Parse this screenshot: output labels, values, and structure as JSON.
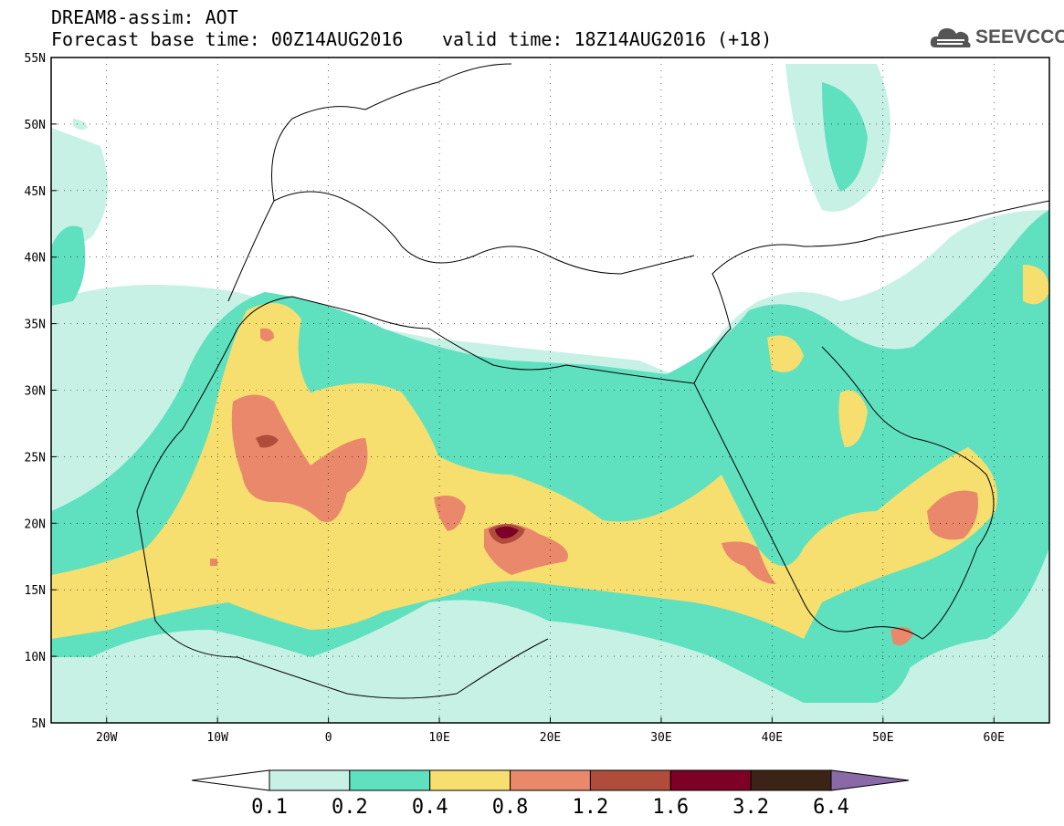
{
  "header": {
    "title": "DREAM8-assim: AOT",
    "forecast_base": "Forecast base time: 00Z14AUG2016",
    "valid_time": "valid time: 18Z14AUG2016 (+18)",
    "logo_text": "SEEVCCC",
    "logo_icon": "cloud-icon"
  },
  "map": {
    "lon_range": [
      -25,
      65
    ],
    "lat_range": [
      5,
      55
    ],
    "lat_labels": [
      "55N",
      "50N",
      "45N",
      "40N",
      "35N",
      "30N",
      "25N",
      "20N",
      "15N",
      "10N",
      "5N"
    ],
    "lon_labels": [
      "20W",
      "10W",
      "0",
      "10E",
      "20E",
      "30E",
      "40E",
      "50E",
      "60E"
    ],
    "gridlines": "dotted"
  },
  "colorbar": {
    "labels": [
      "0.1",
      "0.2",
      "0.4",
      "0.8",
      "1.2",
      "1.6",
      "3.2",
      "6.4"
    ],
    "colors": [
      "#ffffff",
      "#c8f1e6",
      "#5fe0bf",
      "#f6df6e",
      "#e9886a",
      "#b04c3a",
      "#7d0027",
      "#3b2415",
      "#8a69a8"
    ]
  }
}
